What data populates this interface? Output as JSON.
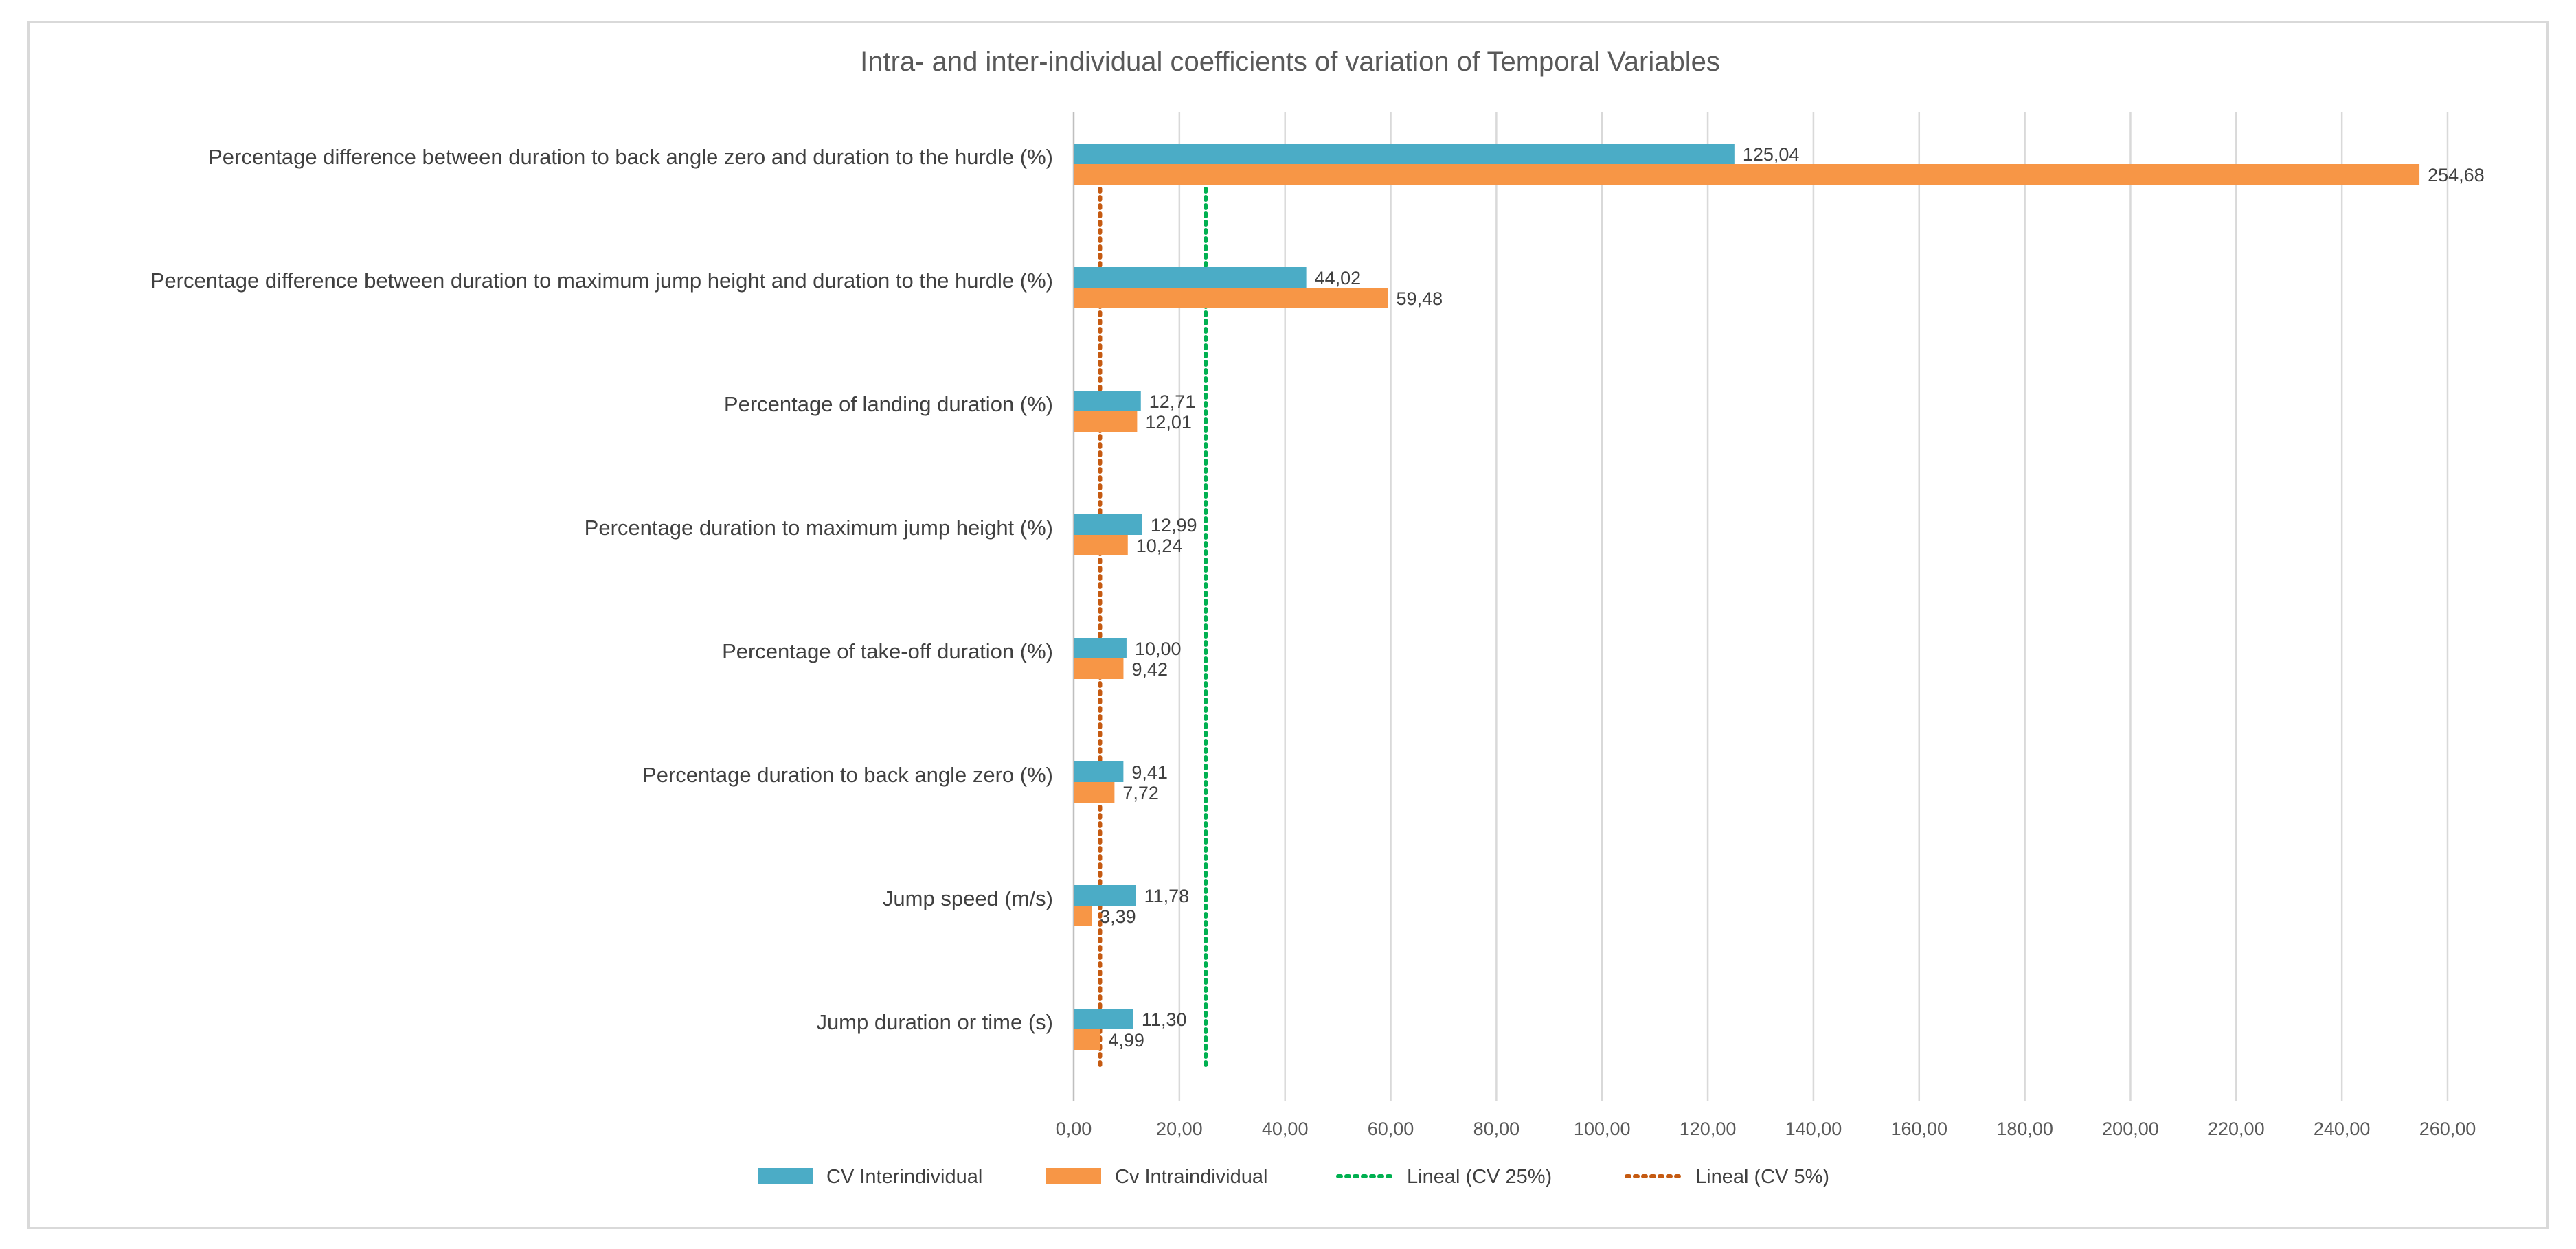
{
  "chart_data": {
    "type": "bar",
    "orientation": "horizontal",
    "title": "Intra- and inter-individual coefficients of variation of Temporal Variables",
    "categories": [
      "Percentage difference between duration to back angle zero and duration to the hurdle (%)",
      "Percentage difference between duration to maximum jump height and duration to the hurdle (%)",
      "Percentage of landing duration (%)",
      "Percentage duration to maximum jump height (%)",
      "Percentage of take-off duration (%)",
      "Percentage duration to back angle zero (%)",
      "Jump speed (m/s)",
      "Jump duration or time (s)"
    ],
    "series": [
      {
        "name": "CV Interindividual",
        "color": "#4bacc6",
        "values": [
          125.04,
          44.02,
          12.71,
          12.99,
          10.0,
          9.41,
          11.78,
          11.3
        ],
        "labels": [
          "125,04",
          "44,02",
          "12,71",
          "12,99",
          "10,00",
          "9,41",
          "11,78",
          "11,30"
        ]
      },
      {
        "name": "Cv Intraindividual",
        "color": "#f79646",
        "values": [
          254.68,
          59.48,
          12.01,
          10.24,
          9.42,
          7.72,
          3.39,
          4.99
        ],
        "labels": [
          "254,68",
          "59,48",
          "12,01",
          "10,24",
          "9,42",
          "7,72",
          "3,39",
          "4,99"
        ]
      }
    ],
    "reference_lines": [
      {
        "name": "Lineal (CV 25%)",
        "value": 25,
        "color": "#00b050",
        "style": "dotted"
      },
      {
        "name": "Lineal (CV 5%)",
        "value": 5,
        "color": "#c55a11",
        "style": "dotted"
      }
    ],
    "xlim": [
      0,
      260
    ],
    "x_ticks": [
      0,
      20,
      40,
      60,
      80,
      100,
      120,
      140,
      160,
      180,
      200,
      220,
      240,
      260
    ],
    "x_tick_labels": [
      "0,00",
      "20,00",
      "40,00",
      "60,00",
      "80,00",
      "100,00",
      "120,00",
      "140,00",
      "160,00",
      "180,00",
      "200,00",
      "220,00",
      "240,00",
      "260,00"
    ],
    "grid": true,
    "legend_position": "bottom"
  }
}
